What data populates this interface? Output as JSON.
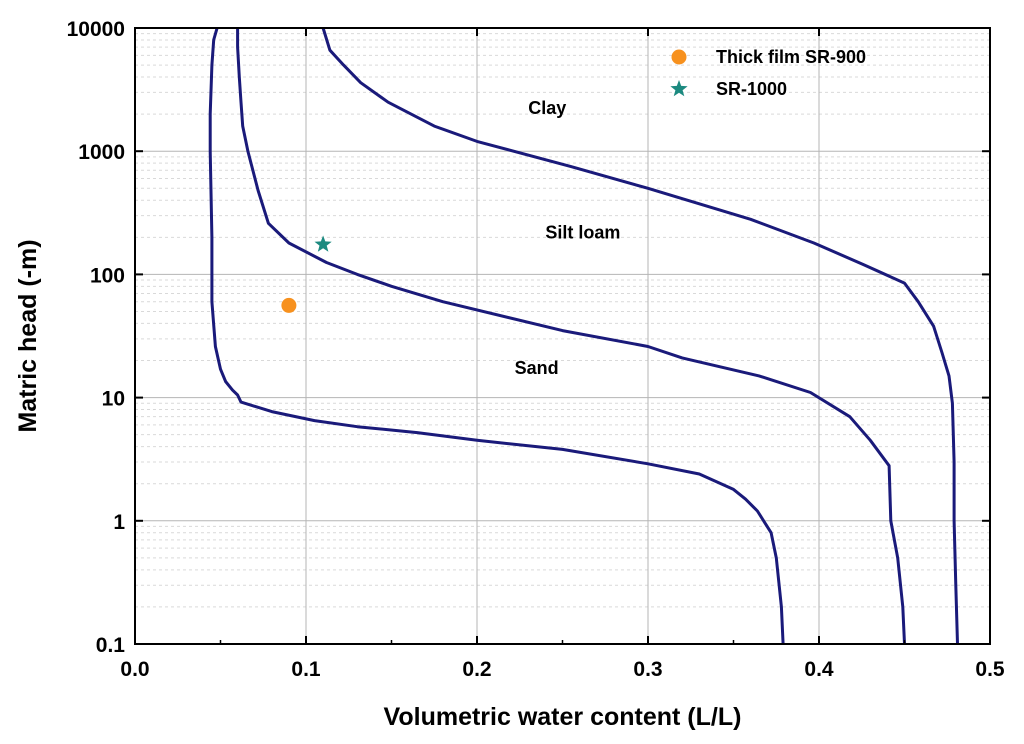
{
  "chart_data": {
    "type": "line",
    "title": "",
    "xlabel": "Volumetric water content (L/L)",
    "ylabel": "Matric head (-m)",
    "xlim": [
      0.0,
      0.5
    ],
    "ylim": [
      0.1,
      10000
    ],
    "yscale": "log",
    "grid": true,
    "legend_position": "top-right",
    "x_ticks": [
      "0.0",
      "0.1",
      "0.2",
      "0.3",
      "0.4",
      "0.5"
    ],
    "y_ticks": [
      "0.1",
      "1",
      "10",
      "100",
      "1000",
      "10000"
    ],
    "line_color": "#1a1a7a",
    "series": [
      {
        "region_label": "Sand",
        "x": [
          0.379,
          0.378,
          0.375,
          0.372,
          0.364,
          0.357,
          0.35,
          0.33,
          0.3,
          0.25,
          0.2,
          0.165,
          0.13,
          0.105,
          0.08,
          0.062,
          0.06,
          0.057,
          0.053,
          0.05,
          0.047,
          0.045,
          0.045,
          0.044,
          0.044,
          0.045,
          0.046,
          0.048
        ],
        "y": [
          0.1,
          0.2,
          0.5,
          0.8,
          1.2,
          1.5,
          1.8,
          2.4,
          2.9,
          3.8,
          4.5,
          5.2,
          5.8,
          6.5,
          7.7,
          9.2,
          10.5,
          11.5,
          13.5,
          17,
          26,
          60,
          200,
          1000,
          2000,
          5000,
          8000,
          10000
        ]
      },
      {
        "region_label": "Silt loam",
        "x": [
          0.45,
          0.449,
          0.446,
          0.442,
          0.441,
          0.43,
          0.418,
          0.395,
          0.365,
          0.32,
          0.3,
          0.25,
          0.18,
          0.15,
          0.13,
          0.112,
          0.09,
          0.078,
          0.072,
          0.066,
          0.063,
          0.062,
          0.061,
          0.06,
          0.06
        ],
        "y": [
          0.1,
          0.2,
          0.5,
          1.0,
          2.8,
          4.5,
          7.0,
          11.0,
          15.0,
          21.0,
          26.0,
          35.0,
          60.0,
          80.0,
          100.0,
          125.0,
          180.0,
          260.0,
          480.0,
          1000.0,
          1600.0,
          2500.0,
          4000.0,
          7000.0,
          10000.0
        ]
      },
      {
        "region_label": "Clay",
        "x": [
          0.481,
          0.48,
          0.479,
          0.479,
          0.478,
          0.476,
          0.472,
          0.467,
          0.458,
          0.45,
          0.426,
          0.397,
          0.36,
          0.3,
          0.255,
          0.2,
          0.175,
          0.148,
          0.132,
          0.122,
          0.114,
          0.11
        ],
        "y": [
          0.1,
          0.3,
          1.0,
          3.0,
          9.0,
          15.0,
          23.0,
          38.0,
          60.0,
          85.0,
          120.0,
          180.0,
          280.0,
          500.0,
          750.0,
          1200.0,
          1600.0,
          2500.0,
          3600.0,
          5000.0,
          6600.0,
          10000.0
        ]
      }
    ],
    "region_labels": [
      {
        "text": "Clay",
        "x": 0.23,
        "y": 2000
      },
      {
        "text": "Silt loam",
        "x": 0.24,
        "y": 195
      },
      {
        "text": "Sand",
        "x": 0.222,
        "y": 15.5
      }
    ],
    "points": [
      {
        "name": "Thick film SR-900",
        "x": 0.09,
        "y": 56,
        "marker": "circle",
        "color": "#f7911e"
      },
      {
        "name": "SR-1000",
        "x": 0.11,
        "y": 175,
        "marker": "star",
        "color": "#1c8a80"
      }
    ]
  }
}
